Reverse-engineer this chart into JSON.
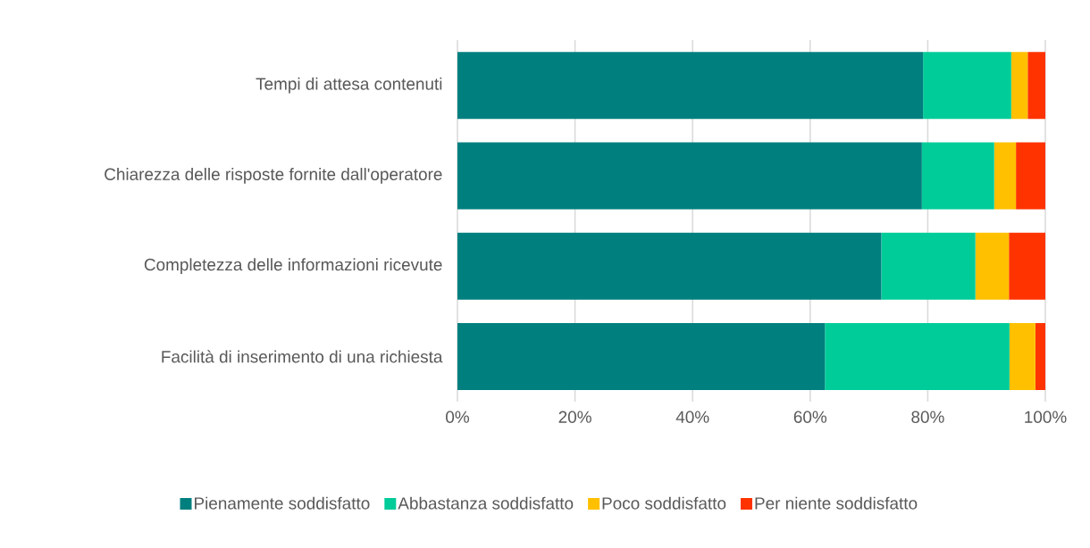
{
  "chart_data": {
    "type": "bar",
    "orientation": "horizontal",
    "stacked": true,
    "categories": [
      "Tempi di attesa contenuti",
      "Chiarezza delle risposte fornite dall'operatore",
      "Completezza delle informazioni ricevute",
      "Facilità di inserimento di una richiesta"
    ],
    "series": [
      {
        "name": "Pienamente soddisfatto",
        "color": "#007f7f",
        "values": [
          79.2,
          79.0,
          72.1,
          62.5
        ]
      },
      {
        "name": "Abbastanza soddisfatto",
        "color": "#00cc99",
        "values": [
          15.0,
          12.3,
          16.0,
          31.4
        ]
      },
      {
        "name": "Poco soddisfatto",
        "color": "#ffc000",
        "values": [
          2.8,
          3.7,
          5.7,
          4.4
        ]
      },
      {
        "name": "Per niente soddisfatto",
        "color": "#ff3300",
        "values": [
          3.0,
          5.0,
          6.2,
          1.7
        ]
      }
    ],
    "xlim": [
      0,
      100
    ],
    "xticks": [
      {
        "value": 0,
        "label": "0%"
      },
      {
        "value": 20,
        "label": "20%"
      },
      {
        "value": 40,
        "label": "40%"
      },
      {
        "value": 60,
        "label": "60%"
      },
      {
        "value": 80,
        "label": "80%"
      },
      {
        "value": 100,
        "label": "100%"
      }
    ],
    "grid": "x",
    "legend": "bottom"
  }
}
